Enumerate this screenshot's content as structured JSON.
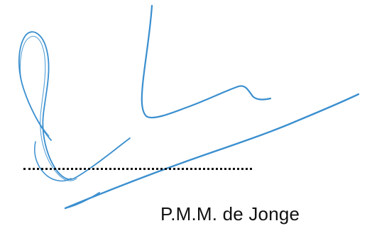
{
  "signature": {
    "signatory_name": "P.M.M. de Jonge",
    "ink_color": "#3a8fcf",
    "line_color": "#111111",
    "name_color": "#111111"
  }
}
